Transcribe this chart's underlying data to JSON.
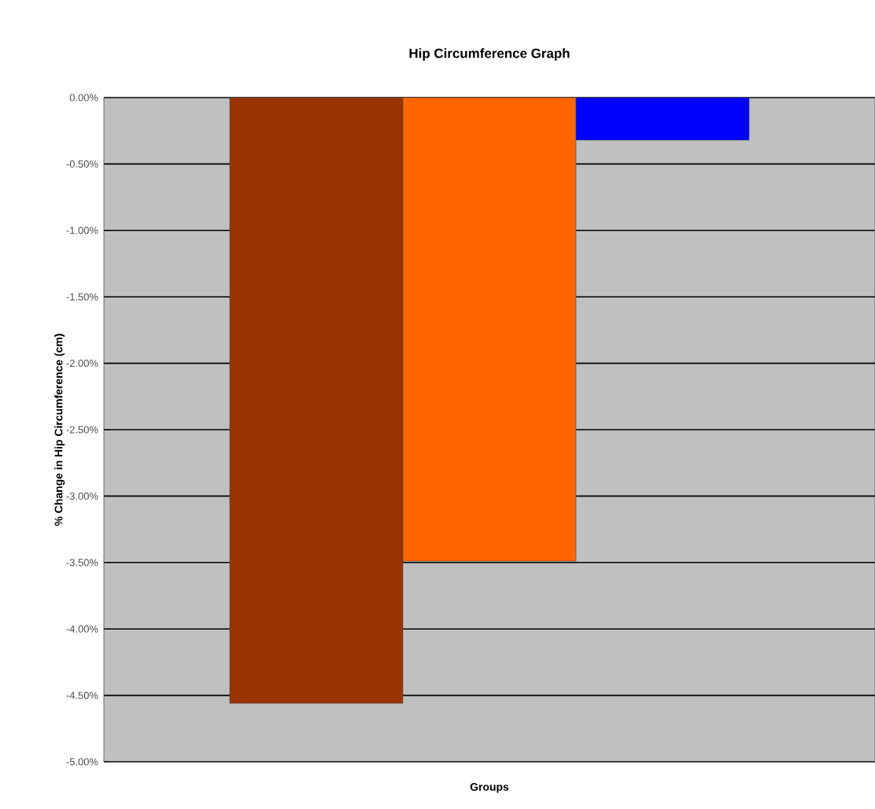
{
  "chart_data": {
    "type": "bar",
    "title": "Hip Circumference Graph",
    "xlabel": "Groups",
    "ylabel": "% Change in Hip Circumference (cm)",
    "categories": [
      null
    ],
    "series": [
      {
        "color": "#993300",
        "values": [
          -4.56
        ]
      },
      {
        "color": "#ff6600",
        "values": [
          -3.49
        ]
      },
      {
        "color": "#0000ff",
        "values": [
          -0.32
        ]
      }
    ],
    "ylim": [
      -5,
      0
    ],
    "yticks": [
      {
        "value": 0,
        "label": "0.00%"
      },
      {
        "value": -0.5,
        "label": "-0.50%"
      },
      {
        "value": -1,
        "label": "-1.00%"
      },
      {
        "value": -1.5,
        "label": "-1.50%"
      },
      {
        "value": -2,
        "label": "-2.00%"
      },
      {
        "value": -2.5,
        "label": "-2.50%"
      },
      {
        "value": -3,
        "label": "-3.00%"
      },
      {
        "value": -3.5,
        "label": "-3.50%"
      },
      {
        "value": -4,
        "label": "-4.00%"
      },
      {
        "value": -4.5,
        "label": "-4.50%"
      },
      {
        "value": -5,
        "label": "-5.00%"
      }
    ],
    "grid": "y",
    "tick_labels": "y"
  }
}
